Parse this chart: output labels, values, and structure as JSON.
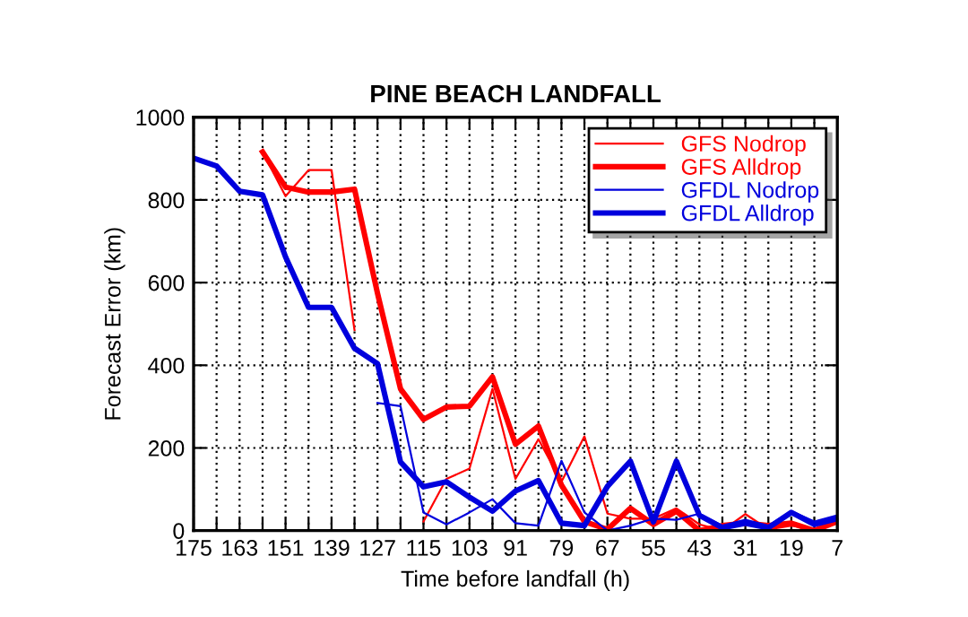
{
  "chart_data": {
    "type": "line",
    "title": "PINE BEACH LANDFALL",
    "xlabel": "Time before landfall (h)",
    "ylabel": "Forecast Error (km)",
    "x": [
      175,
      169,
      163,
      157,
      151,
      145,
      139,
      133,
      127,
      121,
      115,
      109,
      103,
      97,
      91,
      85,
      79,
      73,
      67,
      61,
      55,
      49,
      43,
      37,
      31,
      25,
      19,
      13,
      7
    ],
    "series": [
      {
        "name": "GFS Nodrop",
        "color": "#ff0000",
        "values": [
          null,
          null,
          null,
          916,
          809,
          872,
          872,
          485,
          null,
          null,
          22,
          125,
          150,
          343,
          125,
          221,
          118,
          228,
          41,
          29,
          29,
          54,
          15,
          0,
          40,
          3,
          12,
          3,
          22
        ]
      },
      {
        "name": "GFS Alldrop",
        "color": "#ff0000",
        "values": [
          null,
          null,
          null,
          916,
          831,
          819,
          819,
          826,
          574,
          343,
          269,
          299,
          301,
          372,
          209,
          253,
          110,
          22,
          3,
          54,
          15,
          47,
          0,
          12,
          18,
          12,
          18,
          0,
          22
        ]
      },
      {
        "name": "GFDL Nodrop",
        "color": "#0000dd",
        "values": [
          null,
          null,
          null,
          null,
          null,
          null,
          null,
          null,
          309,
          301,
          44,
          15,
          44,
          76,
          18,
          12,
          169,
          44,
          0,
          12,
          29,
          26,
          41,
          12,
          26,
          12,
          47,
          22,
          37
        ]
      },
      {
        "name": "GFDL Alldrop",
        "color": "#0000dd",
        "values": [
          901,
          882,
          821,
          812,
          662,
          540,
          540,
          441,
          404,
          166,
          106,
          118,
          81,
          47,
          96,
          121,
          18,
          12,
          107,
          168,
          21,
          168,
          37,
          7,
          18,
          7,
          44,
          15,
          29
        ]
      }
    ],
    "xlim": [
      175,
      7
    ],
    "ylim": [
      0,
      1000
    ],
    "xticks": [
      175,
      {
        "value": 169,
        "label": null
      },
      163,
      {
        "value": 157,
        "label": null
      },
      151,
      {
        "value": 145,
        "label": null
      },
      139,
      {
        "value": 133,
        "label": null
      },
      127,
      {
        "value": 121,
        "label": null
      },
      115,
      {
        "value": 109,
        "label": null
      },
      103,
      {
        "value": 97,
        "label": null
      },
      91,
      {
        "value": 85,
        "label": null
      },
      79,
      {
        "value": 73,
        "label": null
      },
      67,
      {
        "value": 61,
        "label": null
      },
      55,
      {
        "value": 49,
        "label": null
      },
      43,
      {
        "value": 37,
        "label": null
      },
      31,
      {
        "value": 25,
        "label": null
      },
      19,
      {
        "value": 13,
        "label": null
      },
      7
    ],
    "yticks": [
      0,
      200,
      400,
      600,
      800,
      1000
    ],
    "grid": true,
    "legend": "top right",
    "marker": "none",
    "line_style": "solid"
  }
}
